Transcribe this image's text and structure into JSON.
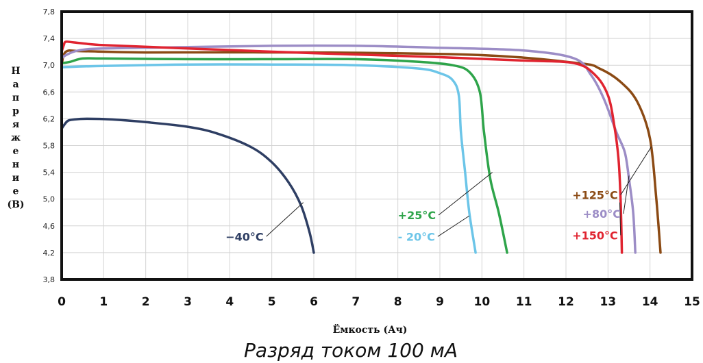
{
  "chart_data": {
    "type": "line",
    "xlabel": "Ёмкость (Ач)",
    "ylabel": "Напряжение (В)",
    "caption": "Разряд током 100 мА",
    "xlim": [
      0,
      15
    ],
    "ylim": [
      3.8,
      7.8
    ],
    "x_ticks": [
      0,
      1,
      2,
      3,
      4,
      5,
      6,
      7,
      8,
      9,
      10,
      11,
      12,
      13,
      14,
      15
    ],
    "y_ticks": [
      "3,8",
      "4,2",
      "4,6",
      "5,0",
      "5,4",
      "5,8",
      "6,2",
      "6,6",
      "7,0",
      "7,4",
      "7,8"
    ],
    "grid": true,
    "series": [
      {
        "name": "+125°C",
        "color": "#8B4A14",
        "x": [
          0,
          0.1,
          0.5,
          2,
          6,
          10,
          12.3,
          12.8,
          13.3,
          13.7,
          14.0,
          14.15,
          14.25
        ],
        "y": [
          7.0,
          7.2,
          7.21,
          7.19,
          7.19,
          7.15,
          7.03,
          6.95,
          6.75,
          6.45,
          5.9,
          5.0,
          4.2
        ]
      },
      {
        "name": "+80°C",
        "color": "#9C8DC6",
        "x": [
          0,
          0.1,
          0.4,
          1,
          3,
          5,
          7,
          9,
          11,
          12.2,
          12.6,
          12.9,
          13.2,
          13.4,
          13.5,
          13.6,
          13.65
        ],
        "y": [
          7.1,
          7.15,
          7.22,
          7.25,
          7.27,
          7.29,
          7.29,
          7.26,
          7.22,
          7.1,
          6.85,
          6.5,
          6.0,
          5.7,
          5.3,
          4.8,
          4.2
        ]
      },
      {
        "name": "+150°C",
        "color": "#E02430",
        "x": [
          0,
          0.05,
          0.1,
          0.3,
          1,
          3,
          6,
          9,
          11,
          12.2,
          12.7,
          13.0,
          13.15,
          13.25,
          13.3,
          13.33
        ],
        "y": [
          7.2,
          7.3,
          7.35,
          7.34,
          7.3,
          7.25,
          7.18,
          7.12,
          7.07,
          7.03,
          6.85,
          6.55,
          6.1,
          5.6,
          5.0,
          4.2
        ]
      },
      {
        "name": "+25°C",
        "color": "#2EA44A",
        "x": [
          0,
          0.2,
          0.5,
          1,
          3,
          5,
          7,
          8.5,
          9.3,
          9.7,
          9.95,
          10.05,
          10.2,
          10.4,
          10.6
        ],
        "y": [
          7.03,
          7.05,
          7.1,
          7.1,
          7.09,
          7.09,
          7.09,
          7.05,
          7.0,
          6.9,
          6.6,
          6.0,
          5.3,
          4.8,
          4.2
        ]
      },
      {
        "name": "- 20°C",
        "color": "#6CC5E8",
        "x": [
          0,
          1,
          3,
          5,
          7,
          8.5,
          9.0,
          9.3,
          9.45,
          9.5,
          9.6,
          9.7,
          9.85
        ],
        "y": [
          6.97,
          6.99,
          7.01,
          7.01,
          7.0,
          6.95,
          6.88,
          6.78,
          6.55,
          6.0,
          5.4,
          4.8,
          4.2
        ]
      },
      {
        "name": "−40°C",
        "color": "#2E3E63",
        "x": [
          0,
          0.05,
          0.15,
          0.3,
          0.6,
          1.2,
          2,
          3,
          3.7,
          4.5,
          5.0,
          5.4,
          5.7,
          5.9,
          6.0
        ],
        "y": [
          6.05,
          6.1,
          6.17,
          6.19,
          6.2,
          6.19,
          6.15,
          6.08,
          5.98,
          5.78,
          5.55,
          5.25,
          4.9,
          4.5,
          4.2
        ]
      }
    ],
    "labels": [
      {
        "text": "+125°C",
        "color": "#8B4A14",
        "x": 12.15,
        "y": 5.0,
        "pointer_to": [
          14.03,
          5.78
        ]
      },
      {
        "text": "+80°C",
        "color": "#9C8DC6",
        "x": 12.4,
        "y": 4.72,
        "pointer_to": [
          13.5,
          5.35
        ]
      },
      {
        "text": "+150°C",
        "color": "#E02430",
        "x": 12.15,
        "y": 4.4,
        "pointer_to": [
          13.28,
          4.95
        ]
      },
      {
        "text": "+25°C",
        "color": "#2EA44A",
        "x": 8.0,
        "y": 4.7,
        "pointer_to": [
          10.25,
          5.4
        ]
      },
      {
        "text": "- 20°C",
        "color": "#6CC5E8",
        "x": 8.0,
        "y": 4.38,
        "pointer_to": [
          9.7,
          4.75
        ]
      },
      {
        "text": "−40°C",
        "color": "#2E3E63",
        "x": 3.9,
        "y": 4.38,
        "pointer_to": [
          5.75,
          4.95
        ]
      }
    ]
  }
}
